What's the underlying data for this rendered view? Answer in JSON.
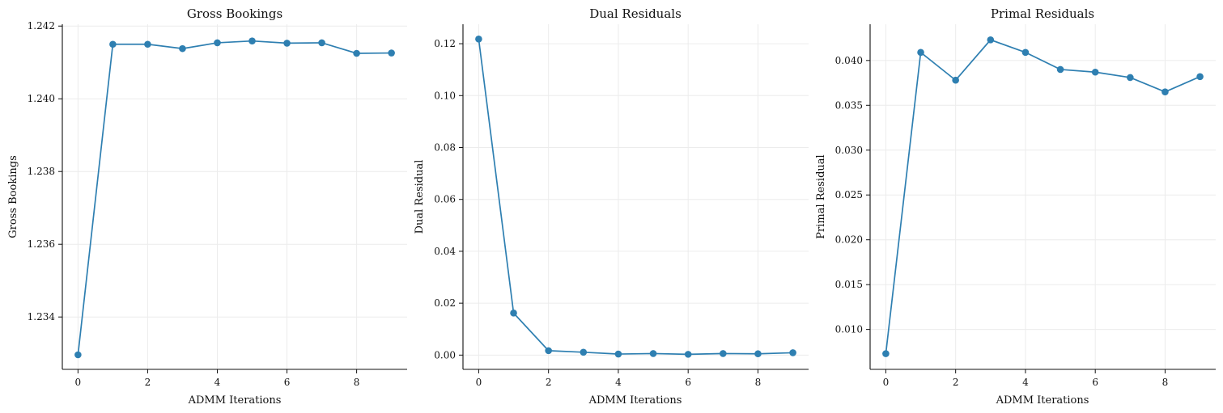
{
  "colors": {
    "series": "#2e7fb1",
    "grid": "#ececec",
    "axis": "#111111"
  },
  "chart_data": [
    {
      "type": "line",
      "title": "Gross Bookings",
      "xlabel": "ADMM Iterations",
      "ylabel": "Gross Bookings",
      "x": [
        0,
        1,
        2,
        3,
        4,
        5,
        6,
        7,
        8,
        9
      ],
      "values": [
        1.23296,
        1.2415,
        1.2415,
        1.24138,
        1.24154,
        1.24159,
        1.24153,
        1.24154,
        1.24125,
        1.24126
      ],
      "xlim": [
        -0.45,
        9.45
      ],
      "ylim": [
        1.23256,
        1.24205
      ],
      "xticks": [
        0,
        2,
        4,
        6,
        8
      ],
      "xtick_labels": [
        "0",
        "2",
        "4",
        "6",
        "8"
      ],
      "yticks": [
        1.234,
        1.236,
        1.238,
        1.24,
        1.242
      ],
      "ytick_labels": [
        "1.234",
        "1.236",
        "1.238",
        "1.240",
        "1.242"
      ],
      "grid": true,
      "markers": "circle"
    },
    {
      "type": "line",
      "title": "Dual Residuals",
      "xlabel": "ADMM Iterations",
      "ylabel": "Dual Residual",
      "x": [
        0,
        1,
        2,
        3,
        4,
        5,
        6,
        7,
        8,
        9
      ],
      "values": [
        0.1218,
        0.0162,
        0.0017,
        0.0011,
        0.0004,
        0.0006,
        0.0003,
        0.0006,
        0.0005,
        0.0009
      ],
      "xlim": [
        -0.45,
        9.45
      ],
      "ylim": [
        -0.0055,
        0.1275
      ],
      "xticks": [
        0,
        2,
        4,
        6,
        8
      ],
      "xtick_labels": [
        "0",
        "2",
        "4",
        "6",
        "8"
      ],
      "yticks": [
        0.0,
        0.02,
        0.04,
        0.06,
        0.08,
        0.1,
        0.12
      ],
      "ytick_labels": [
        "0.00",
        "0.02",
        "0.04",
        "0.06",
        "0.08",
        "0.10",
        "0.12"
      ],
      "grid": true,
      "markers": "circle"
    },
    {
      "type": "line",
      "title": "Primal Residuals",
      "xlabel": "ADMM Iterations",
      "ylabel": "Primal Residual",
      "x": [
        0,
        1,
        2,
        3,
        4,
        5,
        6,
        7,
        8,
        9
      ],
      "values": [
        0.0073,
        0.0409,
        0.0378,
        0.0423,
        0.0409,
        0.039,
        0.0387,
        0.0381,
        0.0365,
        0.0382
      ],
      "xlim": [
        -0.45,
        9.45
      ],
      "ylim": [
        0.00555,
        0.04404
      ],
      "xticks": [
        0,
        2,
        4,
        6,
        8
      ],
      "xtick_labels": [
        "0",
        "2",
        "4",
        "6",
        "8"
      ],
      "yticks": [
        0.01,
        0.015,
        0.02,
        0.025,
        0.03,
        0.035,
        0.04
      ],
      "ytick_labels": [
        "0.010",
        "0.015",
        "0.020",
        "0.025",
        "0.030",
        "0.035",
        "0.040"
      ],
      "grid": true,
      "markers": "circle"
    }
  ]
}
